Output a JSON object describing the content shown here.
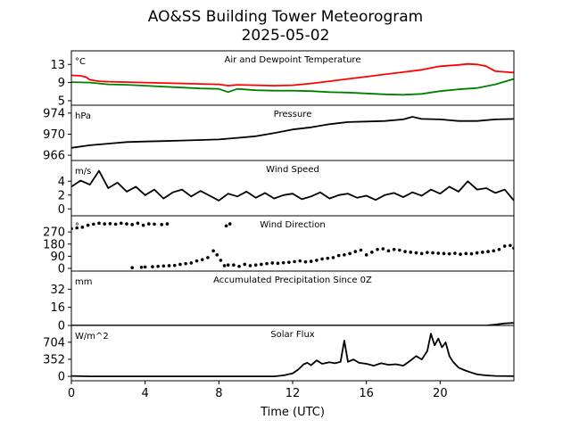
{
  "title": "AO&SS Building Tower Meteorogram",
  "subtitle": "2025-05-02",
  "chart_data": {
    "type": "line",
    "xlabel": "Time (UTC)",
    "xlim": [
      0,
      24
    ],
    "x_ticks": [
      0,
      4,
      8,
      12,
      16,
      20
    ],
    "panels": [
      {
        "title": "Air and Dewpoint Temperature",
        "unit": "°C",
        "ylim": [
          4,
          16
        ],
        "y_ticks": [
          5,
          9,
          13
        ],
        "series": [
          {
            "name": "Air Temperature",
            "color": "#ff0000",
            "style": "line",
            "x": [
              0,
              0.5,
              0.8,
              1.0,
              1.5,
              2,
              3,
              4,
              5,
              6,
              7,
              8,
              8.5,
              9,
              10,
              11,
              12,
              13,
              14,
              15,
              16,
              17,
              18,
              19,
              19.5,
              20,
              21,
              21.5,
              22,
              22.5,
              23,
              24
            ],
            "y": [
              10.6,
              10.5,
              10.2,
              9.6,
              9.3,
              9.2,
              9.1,
              9.0,
              8.9,
              8.8,
              8.7,
              8.6,
              8.3,
              8.5,
              8.4,
              8.3,
              8.4,
              8.8,
              9.3,
              9.8,
              10.3,
              10.8,
              11.3,
              11.8,
              12.2,
              12.6,
              12.9,
              13.1,
              13.0,
              12.6,
              11.5,
              11.2
            ]
          },
          {
            "name": "Dewpoint",
            "color": "#008000",
            "style": "line",
            "x": [
              0,
              1,
              2,
              3,
              4,
              5,
              6,
              7,
              8,
              8.5,
              9,
              10,
              11,
              12,
              13,
              14,
              15,
              16,
              17,
              18,
              19,
              20,
              21,
              22,
              23,
              24
            ],
            "y": [
              9.1,
              9.0,
              8.6,
              8.5,
              8.3,
              8.1,
              7.9,
              7.7,
              7.6,
              6.9,
              7.6,
              7.3,
              7.2,
              7.2,
              7.1,
              6.9,
              6.8,
              6.6,
              6.4,
              6.3,
              6.5,
              7.1,
              7.5,
              7.8,
              8.6,
              9.8
            ]
          }
        ]
      },
      {
        "title": "Pressure",
        "unit": "hPa",
        "ylim": [
          965,
          975.5
        ],
        "y_ticks": [
          966,
          970,
          974
        ],
        "series": [
          {
            "name": "Pressure",
            "color": "#000000",
            "style": "line",
            "x": [
              0,
              1,
              2,
              3,
              4,
              5,
              6,
              7,
              8,
              9,
              10,
              11,
              12,
              13,
              14,
              15,
              16,
              17,
              18,
              18.5,
              19,
              20,
              21,
              22,
              23,
              24
            ],
            "y": [
              967.4,
              967.9,
              968.2,
              968.5,
              968.6,
              968.7,
              968.8,
              968.9,
              969.0,
              969.3,
              969.6,
              970.2,
              970.9,
              971.3,
              971.9,
              972.3,
              972.4,
              972.5,
              972.8,
              973.3,
              972.9,
              972.8,
              972.5,
              972.5,
              972.8,
              972.9
            ]
          }
        ]
      },
      {
        "title": "Wind Speed",
        "unit": "m/s",
        "ylim": [
          -1,
          7
        ],
        "y_ticks": [
          0,
          2,
          4
        ],
        "series": [
          {
            "name": "Wind Speed",
            "color": "#000000",
            "style": "line",
            "x": [
              0,
              0.5,
              1,
              1.5,
              2,
              2.5,
              3,
              3.5,
              4,
              4.5,
              5,
              5.5,
              6,
              6.5,
              7,
              7.5,
              8,
              8.5,
              9,
              9.5,
              10,
              10.5,
              11,
              11.5,
              12,
              12.5,
              13,
              13.5,
              14,
              14.5,
              15,
              15.5,
              16,
              16.5,
              17,
              17.5,
              18,
              18.5,
              19,
              19.5,
              20,
              20.5,
              21,
              21.5,
              22,
              22.5,
              23,
              23.5,
              24
            ],
            "y": [
              3.2,
              4.1,
              3.5,
              5.5,
              3.0,
              3.8,
              2.5,
              3.2,
              2.0,
              2.8,
              1.5,
              2.4,
              2.8,
              1.8,
              2.6,
              1.9,
              1.2,
              2.2,
              1.8,
              2.5,
              1.6,
              2.3,
              1.5,
              2.0,
              2.2,
              1.4,
              1.8,
              2.4,
              1.5,
              2.0,
              2.2,
              1.6,
              1.9,
              1.3,
              2.0,
              2.3,
              1.7,
              2.4,
              1.9,
              2.8,
              2.2,
              3.2,
              2.5,
              4.0,
              2.8,
              3.0,
              2.3,
              2.8,
              1.2
            ]
          }
        ]
      },
      {
        "title": "Wind Direction",
        "unit": "°",
        "ylim": [
          -20,
          390
        ],
        "y_ticks": [
          0,
          90,
          180,
          270
        ],
        "series": [
          {
            "name": "Wind Direction",
            "color": "#000000",
            "style": "scatter",
            "x": [
              0.0,
              0.3,
              0.6,
              0.9,
              1.2,
              1.5,
              1.8,
              2.1,
              2.4,
              2.7,
              3.0,
              3.3,
              3.6,
              3.9,
              4.2,
              4.5,
              4.9,
              5.2,
              3.3,
              3.8,
              4.0,
              4.4,
              4.7,
              5.0,
              5.3,
              5.6,
              5.9,
              6.2,
              6.5,
              6.8,
              7.1,
              7.4,
              7.7,
              7.9,
              8.1,
              8.3,
              8.5,
              8.4,
              8.6,
              8.8,
              9.1,
              9.4,
              9.7,
              10.0,
              10.3,
              10.6,
              10.9,
              11.2,
              11.5,
              11.8,
              12.1,
              12.4,
              12.7,
              13.0,
              13.3,
              13.6,
              13.9,
              14.2,
              14.5,
              14.8,
              15.1,
              15.4,
              15.7,
              16.0,
              16.3,
              16.6,
              16.9,
              17.2,
              17.5,
              17.8,
              18.1,
              18.4,
              18.7,
              19.0,
              19.3,
              19.6,
              19.9,
              20.2,
              20.5,
              20.8,
              21.1,
              21.4,
              21.7,
              22.0,
              22.3,
              22.6,
              22.9,
              23.2,
              23.5,
              23.8,
              24.0
            ],
            "y": [
              295,
              300,
              305,
              320,
              328,
              335,
              330,
              332,
              328,
              335,
              330,
              325,
              335,
              320,
              330,
              328,
              325,
              330,
              5,
              8,
              10,
              12,
              15,
              18,
              20,
              22,
              30,
              35,
              40,
              55,
              65,
              80,
              130,
              100,
              60,
              20,
              25,
              315,
              330,
              25,
              15,
              30,
              20,
              25,
              30,
              35,
              40,
              38,
              42,
              45,
              50,
              55,
              48,
              52,
              60,
              70,
              75,
              80,
              95,
              100,
              110,
              125,
              135,
              100,
              120,
              140,
              145,
              130,
              140,
              135,
              125,
              120,
              115,
              110,
              118,
              115,
              112,
              110,
              108,
              112,
              105,
              110,
              108,
              115,
              120,
              125,
              130,
              140,
              165,
              170,
              150
            ]
          }
        ]
      },
      {
        "title": "Accumulated Precipitation Since 0Z",
        "unit": "mm",
        "ylim": [
          0,
          48
        ],
        "y_ticks": [
          0,
          16,
          32
        ],
        "series": [
          {
            "name": "Precipitation",
            "color": "#000000",
            "style": "line",
            "x": [
              0,
              22.5,
              23,
              23.5,
              24
            ],
            "y": [
              0,
              0,
              0.8,
              1.8,
              2.3
            ]
          }
        ]
      },
      {
        "title": "Solar Flux",
        "unit": "W/m^2",
        "ylim": [
          -90,
          1050
        ],
        "y_ticks": [
          0,
          352,
          704
        ],
        "series": [
          {
            "name": "Solar Flux",
            "color": "#000000",
            "style": "line",
            "x": [
              0,
              1,
              6,
              11.0,
              11.5,
              12.0,
              12.3,
              12.6,
              12.8,
              13.0,
              13.3,
              13.6,
              14.0,
              14.3,
              14.6,
              14.8,
              15.0,
              15.3,
              15.6,
              16.0,
              16.4,
              16.8,
              17.2,
              17.6,
              18.0,
              18.3,
              18.7,
              19.0,
              19.3,
              19.5,
              19.7,
              19.9,
              20.1,
              20.3,
              20.5,
              20.7,
              21.0,
              21.3,
              21.6,
              22.0,
              22.5,
              23.0,
              24.0
            ],
            "y": [
              10,
              0,
              0,
              0,
              20,
              60,
              140,
              250,
              280,
              230,
              330,
              260,
              290,
              270,
              300,
              740,
              300,
              350,
              280,
              260,
              220,
              270,
              240,
              250,
              220,
              300,
              420,
              350,
              520,
              880,
              640,
              780,
              600,
              700,
              420,
              300,
              180,
              130,
              90,
              40,
              20,
              10,
              5
            ]
          }
        ]
      }
    ]
  }
}
